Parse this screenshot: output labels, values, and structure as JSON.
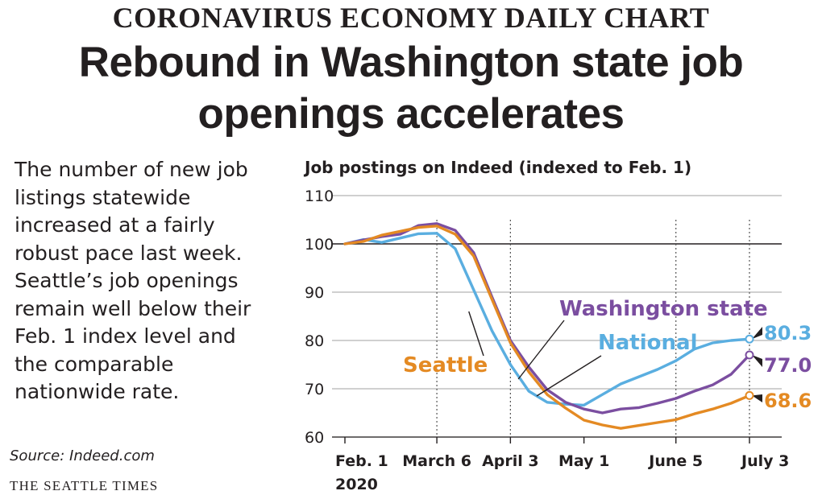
{
  "kicker": "CORONAVIRUS ECONOMY DAILY CHART",
  "headline": {
    "line1": "Rebound in Washington state job",
    "line2": "openings accelerates"
  },
  "chatter": {
    "lines": [
      "The number of new job",
      "listings statewide",
      "increased at a fairly",
      "robust pace last week.",
      "Seattle’s job openings",
      "remain well below their",
      "Feb. 1 index level and",
      "the comparable",
      "nationwide rate."
    ]
  },
  "source": "Source: Indeed.com",
  "credit": "THE SEATTLE TIMES",
  "chart_data": {
    "type": "line",
    "title": "Job postings on Indeed (indexed to Feb. 1)",
    "xlabel": "",
    "ylabel": "",
    "ylim": [
      60,
      110
    ],
    "yticks": [
      60,
      70,
      80,
      90,
      100,
      110
    ],
    "grid": true,
    "x_ticks": [
      {
        "label": "Feb. 1",
        "sublabel": "2020",
        "day": 0,
        "guide": false
      },
      {
        "label": "March 6",
        "day": 35,
        "guide": true
      },
      {
        "label": "April 3",
        "day": 63,
        "guide": true
      },
      {
        "label": "May 1",
        "day": 91,
        "guide": false
      },
      {
        "label": "June 5",
        "day": 126,
        "guide": true
      },
      {
        "label": "July 3",
        "day": 154,
        "guide": true
      }
    ],
    "series": [
      {
        "name": "National",
        "color": "#5aaee0",
        "end_value": "80.3",
        "x": [
          0,
          7,
          14,
          21,
          28,
          35,
          42,
          49,
          56,
          63,
          70,
          77,
          84,
          91,
          98,
          105,
          112,
          119,
          126,
          133,
          140,
          147,
          154
        ],
        "values": [
          100,
          100.9,
          100.3,
          101.2,
          102.1,
          102.2,
          99,
          90.5,
          82,
          75,
          69.5,
          67.2,
          66.8,
          66.6,
          68.8,
          71,
          72.5,
          74,
          75.8,
          78.2,
          79.5,
          80,
          80.3
        ]
      },
      {
        "name": "Washington state",
        "color": "#7b4ea0",
        "end_value": "77.0",
        "x": [
          0,
          7,
          14,
          21,
          28,
          35,
          42,
          49,
          56,
          63,
          70,
          77,
          84,
          91,
          98,
          105,
          112,
          119,
          126,
          133,
          140,
          147,
          154
        ],
        "values": [
          100,
          100.8,
          101.5,
          102,
          103.8,
          104.2,
          102.8,
          98.2,
          89,
          80,
          74.5,
          69.8,
          67.2,
          65.8,
          65,
          65.8,
          66.1,
          67,
          68,
          69.5,
          70.8,
          73,
          77
        ]
      },
      {
        "name": "Seattle",
        "color": "#e48a23",
        "end_value": "68.6",
        "x": [
          0,
          7,
          14,
          21,
          28,
          35,
          42,
          49,
          56,
          63,
          70,
          77,
          84,
          91,
          98,
          105,
          112,
          119,
          126,
          133,
          140,
          147,
          154
        ],
        "values": [
          100,
          100.5,
          101.8,
          102.6,
          103.4,
          103.7,
          102,
          97.5,
          88.5,
          79.5,
          73.5,
          68.8,
          66,
          63.5,
          62.5,
          61.8,
          62.4,
          63,
          63.6,
          64.8,
          65.8,
          67,
          68.6
        ]
      }
    ]
  }
}
